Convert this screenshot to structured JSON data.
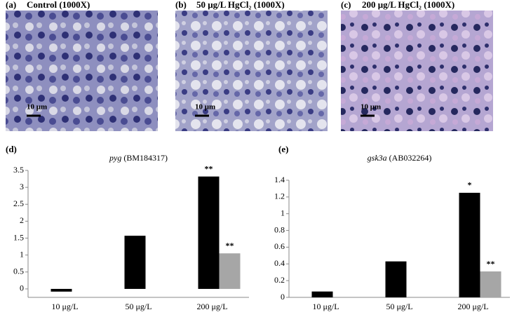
{
  "panels": [
    {
      "label": "(a)",
      "caption": "Control (1000X)",
      "scale": "10 μm"
    },
    {
      "label": "(b)",
      "caption": "50 μg/L HgCl₂ (1000X)",
      "scale": "10 μm"
    },
    {
      "label": "(c)",
      "caption": "200 μg/L HgCl₂ (1000X)",
      "scale": "10 μm"
    }
  ],
  "chart_data": [
    {
      "type": "bar",
      "label": "(d)",
      "gene": "pyg",
      "accession": "(BM184317)",
      "categories": [
        "10 μg/L",
        "50 μg/L",
        "200 μg/L"
      ],
      "series": [
        {
          "color": "#000000",
          "values": [
            -0.08,
            1.57,
            3.32
          ]
        },
        {
          "color": "#a6a6a6",
          "values": [
            null,
            null,
            1.05
          ]
        }
      ],
      "annotations": [
        {
          "series": 0,
          "index": 2,
          "text": "**"
        },
        {
          "series": 1,
          "index": 2,
          "text": "**"
        }
      ],
      "ylim": [
        -0.25,
        3.5
      ],
      "yticks": [
        0,
        0.5,
        1,
        1.5,
        2,
        2.5,
        3,
        3.5
      ]
    },
    {
      "type": "bar",
      "label": "(e)",
      "gene": "gsk3a",
      "accession": "(AB032264)",
      "categories": [
        "10 μg/L",
        "50 μg/L",
        "200 μg/L"
      ],
      "series": [
        {
          "color": "#000000",
          "values": [
            0.07,
            0.43,
            1.25
          ]
        },
        {
          "color": "#a6a6a6",
          "values": [
            null,
            null,
            0.31
          ]
        }
      ],
      "annotations": [
        {
          "series": 0,
          "index": 2,
          "text": "*"
        },
        {
          "series": 1,
          "index": 2,
          "text": "**"
        }
      ],
      "ylim": [
        0,
        1.4
      ],
      "yticks": [
        0,
        0.2,
        0.4,
        0.6,
        0.8,
        1,
        1.2,
        1.4
      ]
    }
  ]
}
